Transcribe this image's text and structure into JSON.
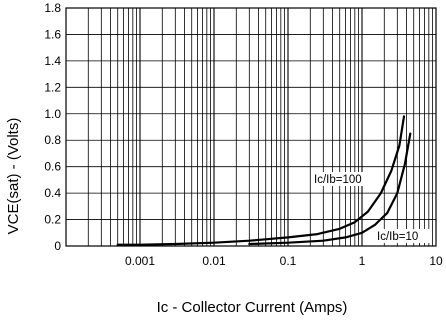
{
  "chart_data": {
    "type": "line",
    "title": "",
    "xlabel": "Ic - Collector Current (Amps)",
    "ylabel": "VCE(sat) - (Volts)",
    "x_scale": "log",
    "xlim": [
      0.0001,
      10
    ],
    "ylim": [
      0,
      1.8
    ],
    "x_tick_labels": [
      "0.001",
      "0.01",
      "0.1",
      "1",
      "10"
    ],
    "y_tick_labels": [
      "0",
      "0.2",
      "0.4",
      "0.6",
      "0.8",
      "1.0",
      "1.2",
      "1.4",
      "1.6",
      "1.8"
    ],
    "grid": true,
    "series": [
      {
        "name": "Ic/Ib=100",
        "x": [
          0.0005,
          0.001,
          0.003,
          0.01,
          0.03,
          0.1,
          0.25,
          0.5,
          0.8,
          1.2,
          1.8,
          2.5,
          3.2,
          3.7
        ],
        "y": [
          0.01,
          0.01,
          0.015,
          0.025,
          0.04,
          0.065,
          0.09,
          0.13,
          0.18,
          0.26,
          0.4,
          0.57,
          0.76,
          0.98
        ]
      },
      {
        "name": "Ic/Ib=10",
        "x": [
          0.03,
          0.1,
          0.3,
          0.6,
          1.0,
          1.5,
          2.2,
          3.0,
          3.8,
          4.5
        ],
        "y": [
          0.015,
          0.025,
          0.04,
          0.065,
          0.1,
          0.16,
          0.25,
          0.4,
          0.62,
          0.85
        ]
      }
    ]
  },
  "curve_labels": {
    "label_100": "Ic/Ib=100",
    "label_10": "Ic/Ib=10"
  }
}
